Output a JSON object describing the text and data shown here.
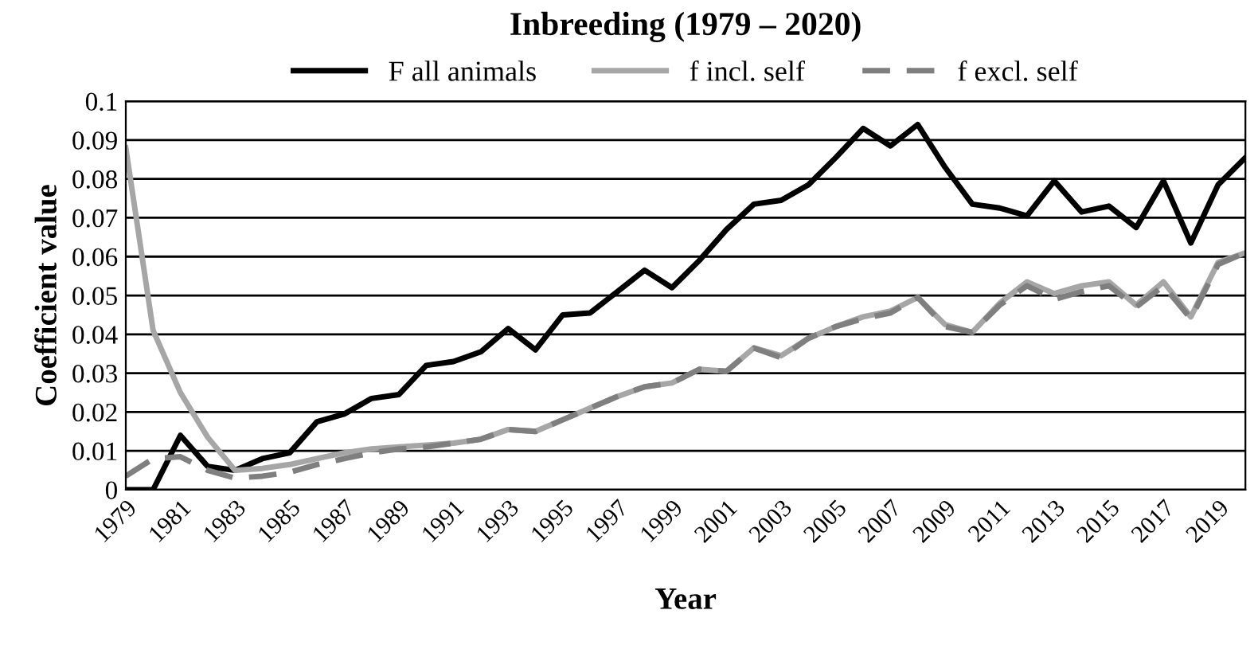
{
  "chart_data": {
    "type": "line",
    "title": "Inbreeding (1979 – 2020)",
    "xlabel": "Year",
    "ylabel": "Coefficient value",
    "categories": [
      "1979",
      null,
      "1981",
      null,
      "1983",
      null,
      "1985",
      null,
      "1987",
      null,
      "1989",
      null,
      "1991",
      null,
      "1993",
      null,
      "1995",
      null,
      "1997",
      null,
      "1999",
      null,
      "2001",
      null,
      "2003",
      null,
      "2005",
      null,
      "2007",
      null,
      "2009",
      null,
      "2011",
      null,
      "2013",
      null,
      "2015",
      null,
      "2017",
      null,
      "2019",
      null
    ],
    "ylim": [
      0,
      0.1
    ],
    "yticks": [
      0,
      0.01,
      0.02,
      0.03,
      0.04,
      0.05,
      0.06,
      0.07,
      0.08,
      0.09,
      0.1
    ],
    "grid": "y",
    "legend": "top",
    "series": [
      {
        "name": "F all animals",
        "color": "#000000",
        "line_style": "solid",
        "values": [
          0,
          0,
          0.014,
          0.006,
          0.005,
          0.008,
          0.0095,
          0.0175,
          0.0195,
          0.0235,
          0.0245,
          0.032,
          0.033,
          0.0355,
          0.0415,
          0.036,
          0.045,
          0.0455,
          0.051,
          0.0565,
          0.052,
          0.059,
          0.067,
          0.0735,
          0.0745,
          0.0785,
          0.0855,
          0.093,
          0.0885,
          0.094,
          0.083,
          0.0735,
          0.0725,
          0.0705,
          0.0795,
          0.0715,
          0.073,
          0.0675,
          0.0795,
          0.0635,
          0.0785,
          0.0855
        ]
      },
      {
        "name": "f incl. self",
        "color": "#a6a6a6",
        "line_style": "solid",
        "values": [
          0.088,
          0.041,
          0.025,
          0.0135,
          0.005,
          0.0055,
          0.0065,
          0.008,
          0.0095,
          0.0105,
          0.011,
          0.0115,
          0.012,
          0.013,
          0.0155,
          0.015,
          0.018,
          0.021,
          0.024,
          0.0265,
          0.0275,
          0.031,
          0.0305,
          0.0365,
          0.0345,
          0.039,
          0.042,
          0.0445,
          0.046,
          0.0495,
          0.0425,
          0.0405,
          0.048,
          0.0535,
          0.0505,
          0.0525,
          0.0535,
          0.0475,
          0.0535,
          0.0445,
          0.0585,
          0.061
        ]
      },
      {
        "name": "f excl. self",
        "color": "#7f7f7f",
        "line_style": "dashed",
        "values": [
          0.0035,
          0.008,
          0.0085,
          0.005,
          0.003,
          0.0035,
          0.0045,
          0.0065,
          0.008,
          0.0095,
          0.0105,
          0.011,
          0.012,
          0.013,
          0.0155,
          0.015,
          0.018,
          0.021,
          0.024,
          0.0265,
          0.0275,
          0.031,
          0.0305,
          0.0365,
          0.034,
          0.039,
          0.042,
          0.044,
          0.0455,
          0.0495,
          0.042,
          0.0405,
          0.0475,
          0.0525,
          0.049,
          0.051,
          0.0525,
          0.047,
          0.0525,
          0.044,
          0.058,
          0.061
        ]
      }
    ]
  }
}
